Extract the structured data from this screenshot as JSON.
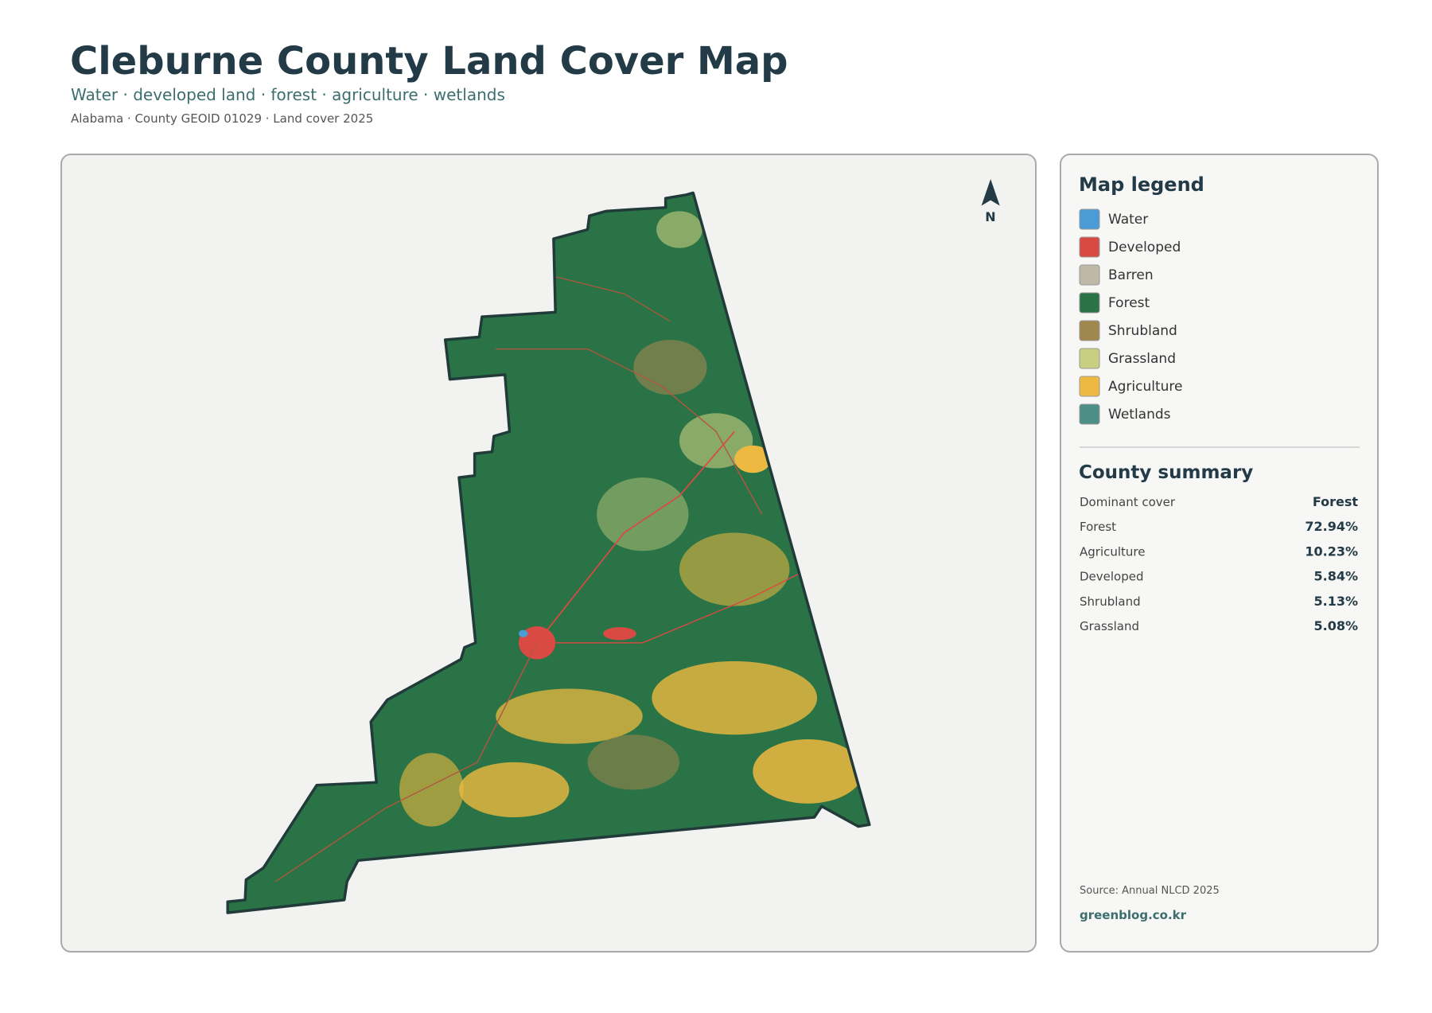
{
  "header": {
    "title": "Cleburne County Land Cover Map",
    "subtitle": "Water · developed land · forest · agriculture · wetlands",
    "meta": "Alabama · County GEOID 01029 · Land cover 2025"
  },
  "map": {
    "north_label": "N"
  },
  "legend": {
    "title": "Map legend",
    "items": [
      {
        "label": "Water",
        "color": "#4a9bd6"
      },
      {
        "label": "Developed",
        "color": "#d94a44"
      },
      {
        "label": "Barren",
        "color": "#bfb8a6"
      },
      {
        "label": "Forest",
        "color": "#2a7346"
      },
      {
        "label": "Shrubland",
        "color": "#a0874e"
      },
      {
        "label": "Grassland",
        "color": "#c9cf80"
      },
      {
        "label": "Agriculture",
        "color": "#eeb940"
      },
      {
        "label": "Wetlands",
        "color": "#4b8f86"
      }
    ]
  },
  "summary": {
    "title": "County summary",
    "rows": [
      [
        "Dominant cover",
        "Forest"
      ],
      [
        "Forest",
        "72.94%"
      ],
      [
        "Agriculture",
        "10.23%"
      ],
      [
        "Developed",
        "5.84%"
      ],
      [
        "Shrubland",
        "5.13%"
      ],
      [
        "Grassland",
        "5.08%"
      ]
    ]
  },
  "footer": {
    "source": "Source: Annual NLCD 2025",
    "credit": "greenblog.co.kr"
  }
}
